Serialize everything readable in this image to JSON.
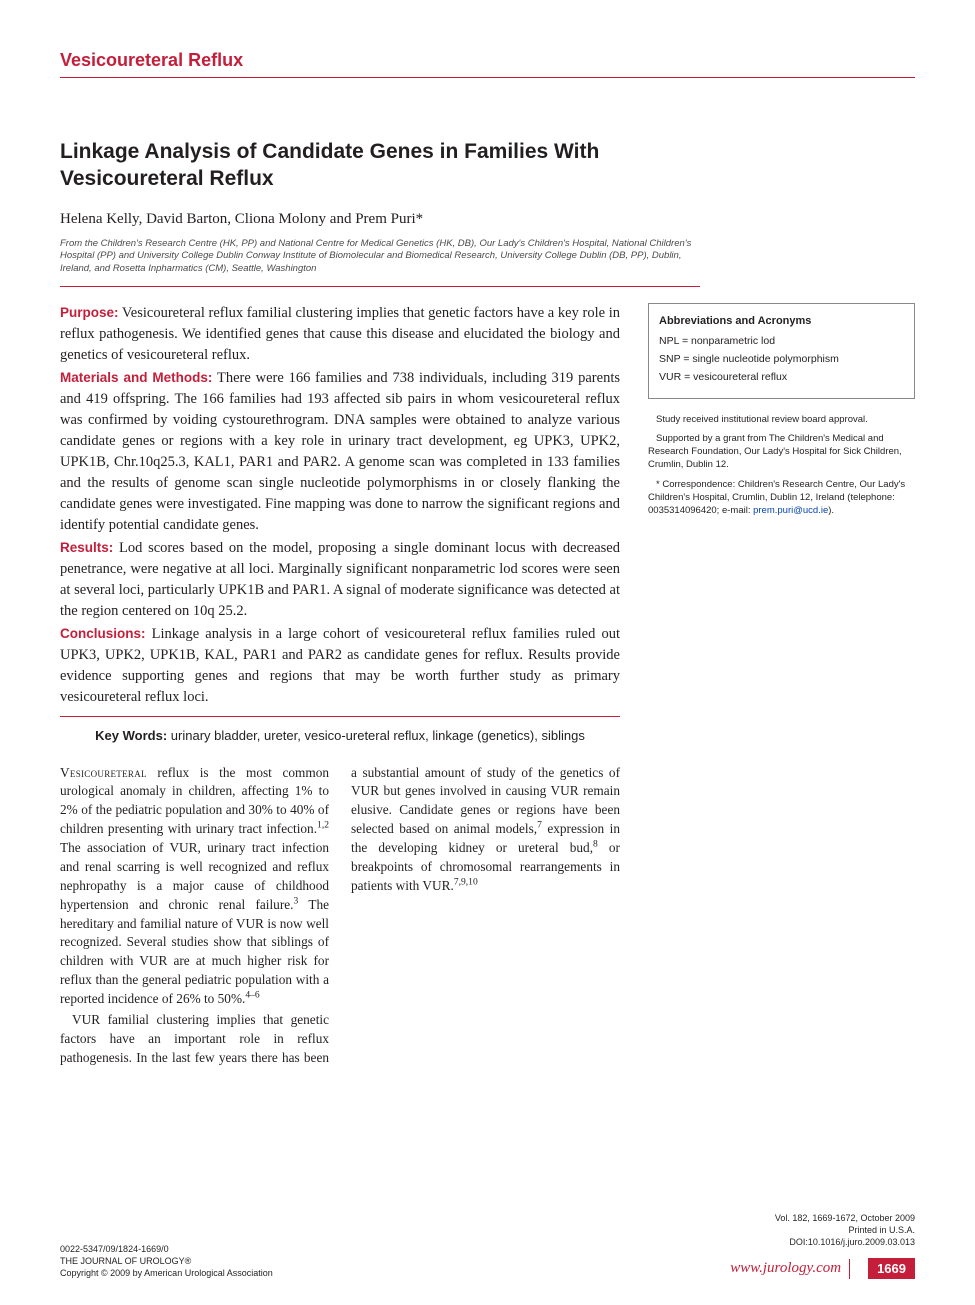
{
  "section_label": "Vesicoureteral Reflux",
  "title": "Linkage Analysis of Candidate Genes in Families With Vesicoureteral Reflux",
  "authors": "Helena Kelly, David Barton, Cliona Molony and Prem Puri*",
  "affiliations": "From the Children's Research Centre (HK, PP) and National Centre for Medical Genetics (HK, DB), Our Lady's Children's Hospital, National Children's Hospital (PP) and University College Dublin Conway Institute of Biomolecular and Biomedical Research, University College Dublin (DB, PP), Dublin, Ireland, and Rosetta Inpharmatics (CM), Seattle, Washington",
  "abstract": {
    "purpose": {
      "label": "Purpose:",
      "text": " Vesicoureteral reflux familial clustering implies that genetic factors have a key role in reflux pathogenesis. We identified genes that cause this disease and elucidated the biology and genetics of vesicoureteral reflux."
    },
    "methods": {
      "label": "Materials and Methods:",
      "text": " There were 166 families and 738 individuals, including 319 parents and 419 offspring. The 166 families had 193 affected sib pairs in whom vesicoureteral reflux was confirmed by voiding cystourethrogram. DNA samples were obtained to analyze various candidate genes or regions with a key role in urinary tract development, eg UPK3, UPK2, UPK1B, Chr.10q25.3, KAL1, PAR1 and PAR2. A genome scan was completed in 133 families and the results of genome scan single nucleotide polymorphisms in or closely flanking the candidate genes were investigated. Fine mapping was done to narrow the significant regions and identify potential candidate genes."
    },
    "results": {
      "label": "Results:",
      "text": " Lod scores based on the model, proposing a single dominant locus with decreased penetrance, were negative at all loci. Marginally significant nonparametric lod scores were seen at several loci, particularly UPK1B and PAR1. A signal of moderate significance was detected at the region centered on 10q 25.2."
    },
    "conclusions": {
      "label": "Conclusions:",
      "text": " Linkage analysis in a large cohort of vesicoureteral reflux families ruled out UPK3, UPK2, UPK1B, KAL, PAR1 and PAR2 as candidate genes for reflux. Results provide evidence supporting genes and regions that may be worth further study as primary vesicoureteral reflux loci."
    }
  },
  "keywords": {
    "label": "Key Words:",
    "text": " urinary bladder, ureter, vesico-ureteral reflux, linkage (genetics), siblings"
  },
  "abbreviations": {
    "title": "Abbreviations and Acronyms",
    "items": [
      "NPL = nonparametric lod",
      "SNP = single nucleotide polymorphism",
      "VUR = vesicoureteral reflux"
    ]
  },
  "sidenotes": {
    "irb": "Study received institutional review board approval.",
    "support": "Supported by a grant from The Children's Medical and Research Foundation, Our Lady's Hospital for Sick Children, Crumlin, Dublin 12.",
    "corr_pre": "* Correspondence: Children's Research Centre, Our Lady's Children's Hospital, Crumlin, Dublin 12, Ireland (telephone: 0035314096420; e-mail: ",
    "corr_email": "prem.puri@ucd.ie",
    "corr_post": ")."
  },
  "body": {
    "p1_cap": "Vesicoureteral",
    "p1": " reflux is the most common urological anomaly in children, affecting 1% to 2% of the pediatric population and 30% to 40% of children presenting with urinary tract infection.",
    "p1_sup1": "1,2",
    "p1b": " The association of VUR, urinary tract infection and renal scarring is well recognized and reflux nephropathy is a major cause of childhood hypertension and chronic renal failure.",
    "p1_sup2": "3",
    "p1c": " The hereditary and familial nature of VUR is now well recognized. Several studies show that siblings of children with VUR are at much higher risk for",
    "p2a": "reflux than the general pediatric population with a reported incidence of 26% to 50%.",
    "p2_sup1": "4–6",
    "p3a": "VUR familial clustering implies that genetic factors have an important role in reflux pathogenesis. In the last few years there has been a substantial amount of study of the genetics of VUR but genes involved in causing VUR remain elusive. Candidate genes or regions have been selected based on animal models,",
    "p3_sup1": "7",
    "p3b": " expression in the developing kidney or ureteral bud,",
    "p3_sup2": "8",
    "p3c": " or breakpoints of chromosomal rearrangements in patients with VUR.",
    "p3_sup3": "7,9,10"
  },
  "footer": {
    "left1": "0022-5347/09/1824-1669/0",
    "left2": "THE JOURNAL OF UROLOGY®",
    "left3": "Copyright © 2009 by American Urological Association",
    "right1": "Vol. 182, 1669-1672, October 2009",
    "right2": "Printed in U.S.A.",
    "right3": "DOI:10.1016/j.juro.2009.03.013",
    "site": "www.jurology.com",
    "page": "1669"
  },
  "colors": {
    "accent": "#c41e3a",
    "text": "#231f20",
    "link": "#0645ad"
  }
}
